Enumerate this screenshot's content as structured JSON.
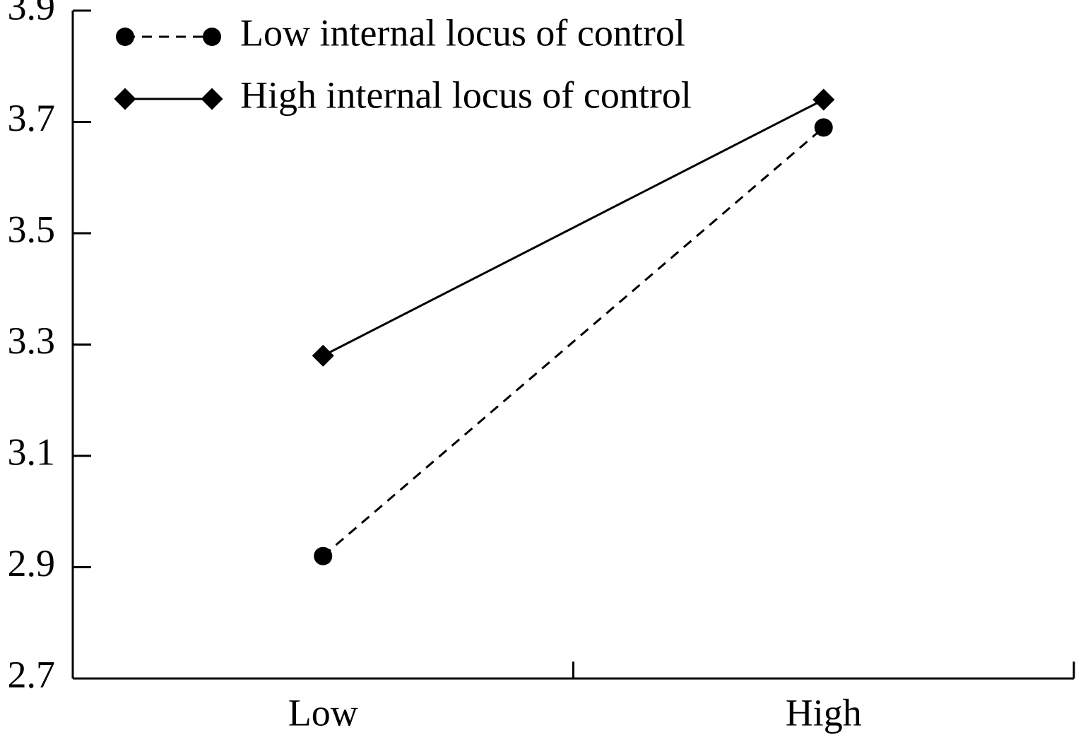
{
  "chart_data": {
    "type": "line",
    "categories": [
      "Low",
      "High"
    ],
    "series": [
      {
        "name": "Low internal locus of control",
        "color": "#000000",
        "line_style": "dashed",
        "marker": "circle",
        "values": [
          2.92,
          3.69
        ]
      },
      {
        "name": "High internal locus of control",
        "color": "#000000",
        "line_style": "solid",
        "marker": "diamond",
        "values": [
          3.28,
          3.74
        ]
      }
    ],
    "ylim": [
      2.7,
      3.9
    ],
    "yticks": [
      2.7,
      2.9,
      3.1,
      3.3,
      3.5,
      3.7,
      3.9
    ],
    "grid": false,
    "legend": "top-left"
  }
}
